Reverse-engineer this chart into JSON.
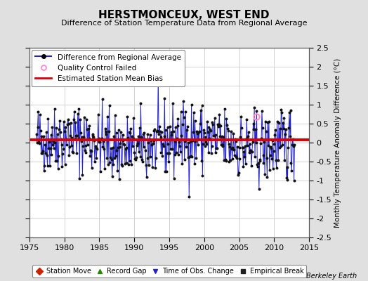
{
  "title": "HERSTMONCEUX, WEST END",
  "subtitle": "Difference of Station Temperature Data from Regional Average",
  "ylabel": "Monthly Temperature Anomaly Difference (°C)",
  "xlabel_years": [
    1975,
    1980,
    1985,
    1990,
    1995,
    2000,
    2005,
    2010,
    2015
  ],
  "ylim": [
    -2.5,
    2.5
  ],
  "xlim": [
    1975,
    2015
  ],
  "yticks": [
    -2.5,
    -2,
    -1.5,
    -1,
    -0.5,
    0,
    0.5,
    1,
    1.5,
    2,
    2.5
  ],
  "bias_value": 0.08,
  "bg_color": "#e0e0e0",
  "plot_bg_color": "#ffffff",
  "line_color": "#2222cc",
  "bias_color": "#dd0000",
  "qc_color": "#ff88cc",
  "seed": 42,
  "watermark": "Berkeley Earth",
  "legend1_items": [
    "Difference from Regional Average",
    "Quality Control Failed",
    "Estimated Station Mean Bias"
  ],
  "legend2_items": [
    "Station Move",
    "Record Gap",
    "Time of Obs. Change",
    "Empirical Break"
  ],
  "start_year": 1976,
  "end_year": 2012
}
